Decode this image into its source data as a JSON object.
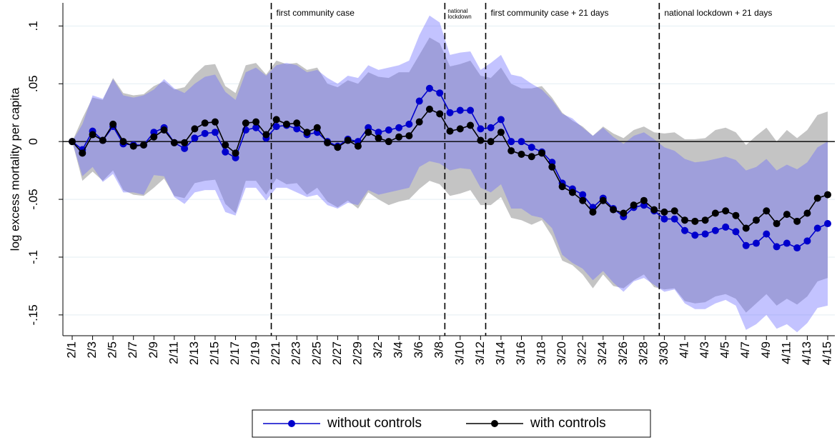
{
  "chart_data": {
    "type": "line",
    "y_label": "log excess mortality per capita",
    "categories": [
      "2/1",
      null,
      "2/3",
      null,
      "2/5",
      null,
      "2/7",
      null,
      "2/9",
      null,
      "2/11",
      null,
      "2/13",
      null,
      "2/15",
      null,
      "2/17",
      null,
      "2/19",
      null,
      "2/21",
      null,
      "2/23",
      null,
      "2/25",
      null,
      "2/27",
      null,
      "2/29",
      null,
      "3/2",
      null,
      "3/4",
      null,
      "3/6",
      null,
      "3/8",
      null,
      "3/10",
      null,
      "3/12",
      null,
      "3/14",
      null,
      "3/16",
      null,
      "3/18",
      null,
      "3/20",
      null,
      "3/22",
      null,
      "3/24",
      null,
      "3/26",
      null,
      "3/28",
      null,
      "3/30",
      null,
      "4/1",
      null,
      "4/3",
      null,
      "4/5",
      null,
      "4/7",
      null,
      "4/9",
      null,
      "4/11",
      null,
      "4/13",
      null,
      "4/15"
    ],
    "ylim": [
      -0.168,
      0.12
    ],
    "yticks": [
      {
        "value": -0.15,
        "label": "-.15"
      },
      {
        "value": -0.1,
        "label": "-.1"
      },
      {
        "value": -0.05,
        "label": "-.05"
      },
      0,
      {
        "value": 0.05,
        "label": ".05"
      },
      {
        "value": 0.1,
        "label": ".1"
      }
    ],
    "grid": true,
    "reference_line": 0,
    "events": [
      {
        "label": [
          "first community case"
        ],
        "position": 19.5
      },
      {
        "label": [
          "national",
          "lockdown"
        ],
        "position": 36.5
      },
      {
        "label": [
          "first community case + 21 days"
        ],
        "position": 40.5
      },
      {
        "label": [
          "national lockdown + 21 days"
        ],
        "position": 57.5
      }
    ],
    "series": [
      {
        "name": "without controls",
        "color": "#0000cc",
        "band_color": "#6a6aff",
        "values": [
          0,
          -0.007,
          0.009,
          0.001,
          0.013,
          -0.002,
          -0.003,
          -0.003,
          0.008,
          0.012,
          -0.001,
          -0.006,
          0.003,
          0.007,
          0.008,
          -0.009,
          -0.014,
          0.01,
          0.012,
          0.003,
          0.013,
          0.014,
          0.011,
          0.006,
          0.008,
          0.0,
          -0.004,
          0.002,
          0.0,
          0.012,
          0.008,
          0.01,
          0.012,
          0.015,
          0.035,
          0.046,
          0.042,
          0.025,
          0.027,
          0.027,
          0.011,
          0.012,
          0.019,
          0.0,
          0.0,
          -0.005,
          -0.009,
          -0.018,
          -0.036,
          -0.041,
          -0.046,
          -0.057,
          -0.049,
          -0.058,
          -0.065,
          -0.057,
          -0.055,
          -0.06,
          -0.067,
          -0.067,
          -0.077,
          -0.081,
          -0.08,
          -0.077,
          -0.074,
          -0.078,
          -0.09,
          -0.088,
          -0.08,
          -0.091,
          -0.088,
          -0.092,
          -0.086,
          -0.075,
          -0.071
        ],
        "upper": [
          0,
          0.015,
          0.04,
          0.037,
          0.054,
          0.04,
          0.038,
          0.04,
          0.045,
          0.054,
          0.046,
          0.042,
          0.05,
          0.056,
          0.058,
          0.043,
          0.036,
          0.06,
          0.064,
          0.057,
          0.066,
          0.068,
          0.066,
          0.06,
          0.062,
          0.055,
          0.05,
          0.057,
          0.055,
          0.066,
          0.062,
          0.064,
          0.066,
          0.07,
          0.092,
          0.109,
          0.103,
          0.075,
          0.077,
          0.078,
          0.062,
          0.068,
          0.075,
          0.058,
          0.056,
          0.05,
          0.045,
          0.036,
          0.024,
          0.02,
          0.012,
          0.005,
          0.012,
          0.004,
          -0.002,
          0.005,
          0.008,
          0.002,
          -0.005,
          -0.008,
          -0.015,
          -0.018,
          -0.017,
          -0.015,
          -0.013,
          -0.016,
          -0.025,
          -0.022,
          -0.015,
          -0.025,
          -0.02,
          -0.024,
          -0.018,
          -0.005,
          0.0
        ],
        "lower": [
          0,
          -0.03,
          -0.022,
          -0.035,
          -0.028,
          -0.044,
          -0.044,
          -0.046,
          -0.029,
          -0.03,
          -0.048,
          -0.054,
          -0.044,
          -0.042,
          -0.042,
          -0.061,
          -0.064,
          -0.04,
          -0.04,
          -0.051,
          -0.04,
          -0.04,
          -0.044,
          -0.048,
          -0.046,
          -0.055,
          -0.058,
          -0.053,
          -0.055,
          -0.042,
          -0.046,
          -0.044,
          -0.042,
          -0.04,
          -0.022,
          -0.017,
          -0.019,
          -0.025,
          -0.023,
          -0.024,
          -0.04,
          -0.044,
          -0.037,
          -0.058,
          -0.058,
          -0.064,
          -0.066,
          -0.075,
          -0.098,
          -0.105,
          -0.11,
          -0.12,
          -0.112,
          -0.122,
          -0.13,
          -0.121,
          -0.118,
          -0.124,
          -0.13,
          -0.128,
          -0.14,
          -0.145,
          -0.145,
          -0.14,
          -0.137,
          -0.142,
          -0.163,
          -0.158,
          -0.15,
          -0.162,
          -0.158,
          -0.165,
          -0.157,
          -0.144,
          -0.142
        ]
      },
      {
        "name": "with controls",
        "color": "#000000",
        "band_color": "#c4c4c4",
        "values": [
          0,
          -0.01,
          0.006,
          0.001,
          0.015,
          0.0,
          -0.004,
          -0.003,
          0.004,
          0.01,
          -0.001,
          -0.001,
          0.011,
          0.016,
          0.017,
          -0.003,
          -0.01,
          0.016,
          0.017,
          0.006,
          0.019,
          0.015,
          0.016,
          0.008,
          0.012,
          -0.001,
          -0.005,
          0.001,
          -0.004,
          0.008,
          0.003,
          0.0,
          0.004,
          0.005,
          0.017,
          0.028,
          0.024,
          0.009,
          0.011,
          0.014,
          0.001,
          0.0,
          0.008,
          -0.008,
          -0.011,
          -0.013,
          -0.01,
          -0.022,
          -0.039,
          -0.044,
          -0.051,
          -0.061,
          -0.051,
          -0.059,
          -0.062,
          -0.055,
          -0.051,
          -0.059,
          -0.061,
          -0.06,
          -0.068,
          -0.069,
          -0.068,
          -0.062,
          -0.06,
          -0.064,
          -0.075,
          -0.068,
          -0.06,
          -0.071,
          -0.063,
          -0.069,
          -0.062,
          -0.049,
          -0.046
        ],
        "upper": [
          0,
          0.02,
          0.038,
          0.036,
          0.055,
          0.042,
          0.04,
          0.041,
          0.048,
          0.052,
          0.045,
          0.047,
          0.058,
          0.066,
          0.067,
          0.048,
          0.042,
          0.066,
          0.068,
          0.058,
          0.07,
          0.067,
          0.068,
          0.062,
          0.064,
          0.05,
          0.047,
          0.053,
          0.05,
          0.06,
          0.056,
          0.055,
          0.06,
          0.06,
          0.075,
          0.09,
          0.085,
          0.065,
          0.067,
          0.07,
          0.057,
          0.055,
          0.064,
          0.05,
          0.046,
          0.046,
          0.048,
          0.038,
          0.025,
          0.018,
          0.013,
          0.005,
          0.013,
          0.007,
          0.003,
          0.01,
          0.013,
          0.008,
          0.007,
          0.008,
          0.002,
          0.002,
          0.003,
          0.01,
          0.012,
          0.008,
          -0.003,
          0.005,
          0.012,
          0.0,
          0.01,
          0.003,
          0.01,
          0.023,
          0.026
        ],
        "lower": [
          0,
          -0.034,
          -0.026,
          -0.034,
          -0.025,
          -0.042,
          -0.046,
          -0.047,
          -0.04,
          -0.032,
          -0.047,
          -0.049,
          -0.036,
          -0.034,
          -0.033,
          -0.054,
          -0.062,
          -0.034,
          -0.034,
          -0.046,
          -0.032,
          -0.037,
          -0.036,
          -0.046,
          -0.04,
          -0.052,
          -0.057,
          -0.051,
          -0.058,
          -0.044,
          -0.05,
          -0.055,
          -0.052,
          -0.05,
          -0.041,
          -0.034,
          -0.037,
          -0.047,
          -0.045,
          -0.042,
          -0.055,
          -0.055,
          -0.048,
          -0.066,
          -0.068,
          -0.072,
          -0.068,
          -0.082,
          -0.103,
          -0.107,
          -0.115,
          -0.127,
          -0.115,
          -0.125,
          -0.127,
          -0.12,
          -0.115,
          -0.126,
          -0.128,
          -0.127,
          -0.138,
          -0.14,
          -0.139,
          -0.134,
          -0.132,
          -0.136,
          -0.148,
          -0.14,
          -0.132,
          -0.142,
          -0.136,
          -0.141,
          -0.134,
          -0.121,
          -0.118
        ]
      }
    ]
  }
}
